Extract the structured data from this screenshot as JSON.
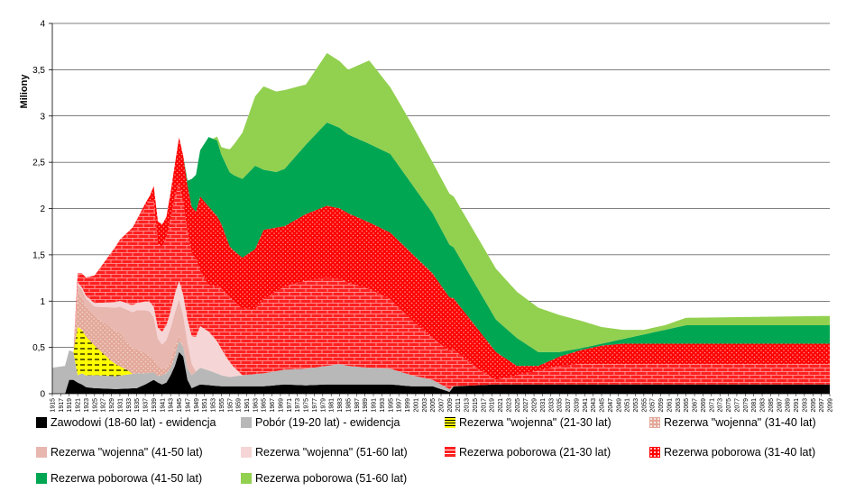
{
  "chart_data": {
    "type": "area",
    "stacked": true,
    "ylabel": "Miliony",
    "ylim": [
      0,
      4
    ],
    "yticks": [
      "0",
      "0,5",
      "1",
      "1,5",
      "2",
      "2,5",
      "3",
      "3,5",
      "4"
    ],
    "x_range": [
      1915,
      2099
    ],
    "x_tick_step": 2,
    "grid": "horizontal",
    "legend": "bottom",
    "series": [
      {
        "name": "Zawodowi (18-60 lat) - ewidencja",
        "color": "#000000",
        "pattern": "solid",
        "points": [
          [
            1915,
            0
          ],
          [
            1918,
            0
          ],
          [
            1919,
            0.15
          ],
          [
            1920,
            0.15
          ],
          [
            1921,
            0.12
          ],
          [
            1922,
            0.1
          ],
          [
            1923,
            0.07
          ],
          [
            1925,
            0.06
          ],
          [
            1930,
            0.05
          ],
          [
            1935,
            0.06
          ],
          [
            1937,
            0.1
          ],
          [
            1939,
            0.15
          ],
          [
            1940,
            0.12
          ],
          [
            1941,
            0.1
          ],
          [
            1942,
            0.12
          ],
          [
            1943,
            0.2
          ],
          [
            1944,
            0.3
          ],
          [
            1945,
            0.45
          ],
          [
            1946,
            0.4
          ],
          [
            1947,
            0.15
          ],
          [
            1948,
            0.06
          ],
          [
            1950,
            0.1
          ],
          [
            1955,
            0.08
          ],
          [
            1960,
            0.08
          ],
          [
            1965,
            0.08
          ],
          [
            1970,
            0.1
          ],
          [
            1975,
            0.09
          ],
          [
            1980,
            0.1
          ],
          [
            1985,
            0.1
          ],
          [
            1990,
            0.1
          ],
          [
            1995,
            0.1
          ],
          [
            2000,
            0.08
          ],
          [
            2005,
            0.08
          ],
          [
            2009,
            0.02
          ],
          [
            2010,
            0.08
          ],
          [
            2020,
            0.1
          ],
          [
            2030,
            0.1
          ],
          [
            2050,
            0.1
          ],
          [
            2099,
            0.1
          ]
        ]
      },
      {
        "name": "Pobór (19-20 lat) - ewidencja",
        "color": "#b8b8b8",
        "pattern": "solid",
        "points": [
          [
            1915,
            0.28
          ],
          [
            1918,
            0.3
          ],
          [
            1919,
            0.32
          ],
          [
            1920,
            0.3
          ],
          [
            1921,
            0.08
          ],
          [
            1922,
            0.12
          ],
          [
            1925,
            0.14
          ],
          [
            1930,
            0.14
          ],
          [
            1935,
            0.16
          ],
          [
            1937,
            0.12
          ],
          [
            1939,
            0.08
          ],
          [
            1940,
            0.07
          ],
          [
            1941,
            0.1
          ],
          [
            1942,
            0.1
          ],
          [
            1943,
            0.08
          ],
          [
            1944,
            0.1
          ],
          [
            1945,
            0.12
          ],
          [
            1946,
            0.1
          ],
          [
            1947,
            0.12
          ],
          [
            1948,
            0.14
          ],
          [
            1950,
            0.18
          ],
          [
            1952,
            0.16
          ],
          [
            1955,
            0.12
          ],
          [
            1957,
            0.1
          ],
          [
            1960,
            0.12
          ],
          [
            1965,
            0.14
          ],
          [
            1970,
            0.16
          ],
          [
            1975,
            0.18
          ],
          [
            1980,
            0.2
          ],
          [
            1983,
            0.22
          ],
          [
            1985,
            0.2
          ],
          [
            1990,
            0.18
          ],
          [
            1995,
            0.17
          ],
          [
            2000,
            0.12
          ],
          [
            2005,
            0.07
          ],
          [
            2009,
            0.03
          ],
          [
            2010,
            0
          ],
          [
            2099,
            0
          ]
        ]
      },
      {
        "name": "Rezerwa \"wojenna\" (21-30 lat)",
        "color": "#ffff00",
        "pattern": "dash",
        "points": [
          [
            1915,
            0
          ],
          [
            1920,
            0
          ],
          [
            1921,
            0.52
          ],
          [
            1923,
            0.42
          ],
          [
            1925,
            0.32
          ],
          [
            1927,
            0.24
          ],
          [
            1929,
            0.16
          ],
          [
            1931,
            0.1
          ],
          [
            1933,
            0.04
          ],
          [
            1934,
            0
          ],
          [
            2099,
            0
          ]
        ]
      },
      {
        "name": "Rezerwa \"wojenna\" (31-40 lat)",
        "color": "#e3a899",
        "pattern": "dots",
        "points": [
          [
            1915,
            0
          ],
          [
            1920,
            0
          ],
          [
            1921,
            0.38
          ],
          [
            1923,
            0.32
          ],
          [
            1925,
            0.32
          ],
          [
            1927,
            0.34
          ],
          [
            1929,
            0.36
          ],
          [
            1931,
            0.36
          ],
          [
            1933,
            0.3
          ],
          [
            1935,
            0.26
          ],
          [
            1937,
            0.22
          ],
          [
            1939,
            0.15
          ],
          [
            1940,
            0.1
          ],
          [
            1941,
            0.08
          ],
          [
            1942,
            0.06
          ],
          [
            1944,
            0.1
          ],
          [
            1945,
            0.05
          ],
          [
            1946,
            0
          ],
          [
            2099,
            0
          ]
        ]
      },
      {
        "name": "Rezerwa \"wojenna\" (41-50 lat)",
        "color": "#e8b7b0",
        "pattern": "solid",
        "points": [
          [
            1915,
            0
          ],
          [
            1920,
            0
          ],
          [
            1921,
            0.08
          ],
          [
            1925,
            0.1
          ],
          [
            1930,
            0.25
          ],
          [
            1935,
            0.42
          ],
          [
            1938,
            0.48
          ],
          [
            1939,
            0.45
          ],
          [
            1940,
            0.3
          ],
          [
            1941,
            0.25
          ],
          [
            1943,
            0.35
          ],
          [
            1945,
            0.4
          ],
          [
            1947,
            0.28
          ],
          [
            1948,
            0.12
          ],
          [
            1949,
            0
          ],
          [
            2099,
            0
          ]
        ]
      },
      {
        "name": "Rezerwa \"wojenna\" (51-60 lat)",
        "color": "#f5d5d5",
        "pattern": "solid",
        "points": [
          [
            1915,
            0
          ],
          [
            1920,
            0
          ],
          [
            1921,
            0.02
          ],
          [
            1930,
            0.06
          ],
          [
            1935,
            0.08
          ],
          [
            1940,
            0.12
          ],
          [
            1944,
            0.2
          ],
          [
            1945,
            0.2
          ],
          [
            1947,
            0.25
          ],
          [
            1948,
            0.3
          ],
          [
            1950,
            0.45
          ],
          [
            1952,
            0.42
          ],
          [
            1954,
            0.35
          ],
          [
            1956,
            0.22
          ],
          [
            1958,
            0.1
          ],
          [
            1960,
            0
          ],
          [
            2099,
            0
          ]
        ]
      },
      {
        "name": "Rezerwa poborowa (21-30 lat)",
        "color": "#ff2020",
        "pattern": "brick",
        "points": [
          [
            1915,
            0
          ],
          [
            1920,
            0
          ],
          [
            1921,
            0.1
          ],
          [
            1925,
            0.3
          ],
          [
            1930,
            0.6
          ],
          [
            1935,
            0.9
          ],
          [
            1939,
            1.15
          ],
          [
            1940,
            0.9
          ],
          [
            1942,
            0.95
          ],
          [
            1944,
            1.05
          ],
          [
            1945,
            1.05
          ],
          [
            1947,
            0.95
          ],
          [
            1949,
            0.85
          ],
          [
            1950,
            0.6
          ],
          [
            1952,
            0.5
          ],
          [
            1955,
            0.65
          ],
          [
            1957,
            0.7
          ],
          [
            1960,
            0.72
          ],
          [
            1963,
            0.7
          ],
          [
            1965,
            0.8
          ],
          [
            1970,
            0.9
          ],
          [
            1975,
            0.95
          ],
          [
            1980,
            0.95
          ],
          [
            1985,
            0.9
          ],
          [
            1990,
            0.85
          ],
          [
            1995,
            0.75
          ],
          [
            2000,
            0.6
          ],
          [
            2005,
            0.45
          ],
          [
            2010,
            0.4
          ],
          [
            2015,
            0.2
          ],
          [
            2020,
            0.05
          ],
          [
            2025,
            0.1
          ],
          [
            2030,
            0.15
          ],
          [
            2035,
            0.2
          ],
          [
            2040,
            0.22
          ],
          [
            2050,
            0.22
          ],
          [
            2099,
            0.22
          ]
        ]
      },
      {
        "name": "Rezerwa poborowa (31-40 lat)",
        "color": "#ff0000",
        "pattern": "dots",
        "points": [
          [
            1915,
            0
          ],
          [
            1920,
            0
          ],
          [
            1921,
            0
          ],
          [
            1925,
            0
          ],
          [
            1930,
            0
          ],
          [
            1935,
            0
          ],
          [
            1938,
            0.05
          ],
          [
            1940,
            0.25
          ],
          [
            1942,
            0.22
          ],
          [
            1944,
            0.35
          ],
          [
            1945,
            0.5
          ],
          [
            1947,
            0.5
          ],
          [
            1949,
            0.5
          ],
          [
            1950,
            0.8
          ],
          [
            1952,
            0.85
          ],
          [
            1955,
            0.7
          ],
          [
            1957,
            0.55
          ],
          [
            1960,
            0.55
          ],
          [
            1963,
            0.65
          ],
          [
            1965,
            0.75
          ],
          [
            1970,
            0.65
          ],
          [
            1975,
            0.72
          ],
          [
            1980,
            0.78
          ],
          [
            1985,
            0.75
          ],
          [
            1990,
            0.72
          ],
          [
            1995,
            0.72
          ],
          [
            2000,
            0.72
          ],
          [
            2005,
            0.7
          ],
          [
            2010,
            0.55
          ],
          [
            2015,
            0.45
          ],
          [
            2020,
            0.3
          ],
          [
            2025,
            0.1
          ],
          [
            2030,
            0.05
          ],
          [
            2035,
            0.1
          ],
          [
            2040,
            0.15
          ],
          [
            2045,
            0.2
          ],
          [
            2050,
            0.22
          ],
          [
            2099,
            0.22
          ]
        ]
      },
      {
        "name": "Rezerwa poborowa (41-50 lat)",
        "color": "#00a651",
        "pattern": "solid",
        "points": [
          [
            1915,
            0
          ],
          [
            1946,
            0
          ],
          [
            1947,
            0.05
          ],
          [
            1948,
            0.3
          ],
          [
            1950,
            0.5
          ],
          [
            1952,
            0.75
          ],
          [
            1954,
            0.82
          ],
          [
            1955,
            0.75
          ],
          [
            1957,
            0.8
          ],
          [
            1960,
            0.85
          ],
          [
            1963,
            0.9
          ],
          [
            1965,
            0.65
          ],
          [
            1968,
            0.6
          ],
          [
            1970,
            0.62
          ],
          [
            1975,
            0.75
          ],
          [
            1980,
            0.9
          ],
          [
            1985,
            0.85
          ],
          [
            1990,
            0.85
          ],
          [
            1995,
            0.85
          ],
          [
            2000,
            0.75
          ],
          [
            2005,
            0.65
          ],
          [
            2010,
            0.55
          ],
          [
            2015,
            0.45
          ],
          [
            2020,
            0.35
          ],
          [
            2025,
            0.3
          ],
          [
            2030,
            0.15
          ],
          [
            2035,
            0.05
          ],
          [
            2040,
            0.02
          ],
          [
            2045,
            0.02
          ],
          [
            2050,
            0.05
          ],
          [
            2055,
            0.1
          ],
          [
            2060,
            0.15
          ],
          [
            2065,
            0.2
          ],
          [
            2099,
            0.2
          ]
        ]
      },
      {
        "name": "Rezerwa poborowa (51-60 lat)",
        "color": "#92d050",
        "pattern": "solid",
        "points": [
          [
            1915,
            0
          ],
          [
            1950,
            0
          ],
          [
            1953,
            0
          ],
          [
            1955,
            0.08
          ],
          [
            1957,
            0.25
          ],
          [
            1960,
            0.5
          ],
          [
            1963,
            0.75
          ],
          [
            1965,
            0.9
          ],
          [
            1970,
            0.85
          ],
          [
            1975,
            0.65
          ],
          [
            1980,
            0.75
          ],
          [
            1985,
            0.7
          ],
          [
            1990,
            0.9
          ],
          [
            1995,
            0.72
          ],
          [
            2000,
            0.65
          ],
          [
            2005,
            0.55
          ],
          [
            2010,
            0.55
          ],
          [
            2015,
            0.55
          ],
          [
            2020,
            0.55
          ],
          [
            2025,
            0.5
          ],
          [
            2030,
            0.48
          ],
          [
            2035,
            0.4
          ],
          [
            2040,
            0.3
          ],
          [
            2045,
            0.18
          ],
          [
            2050,
            0.1
          ],
          [
            2055,
            0.05
          ],
          [
            2060,
            0.05
          ],
          [
            2065,
            0.08
          ],
          [
            2099,
            0.1
          ]
        ]
      }
    ]
  }
}
